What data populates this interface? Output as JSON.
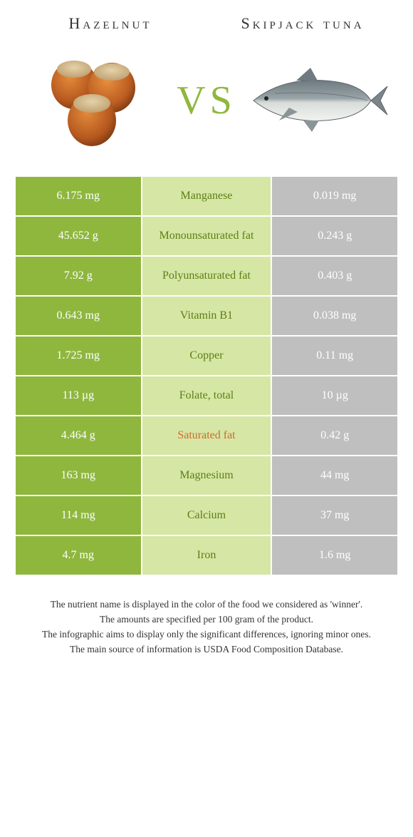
{
  "foods": {
    "left": {
      "title": "Hazelnut"
    },
    "right": {
      "title": "Skipjack tuna"
    },
    "vs": "VS"
  },
  "colors": {
    "left_bg": "#8fb73e",
    "mid_bg": "#d6e6a5",
    "right_bg": "#c0bfbf",
    "winner_left": "#5d7f14",
    "winner_right": "#d06a2c"
  },
  "rows": [
    {
      "left": "6.175 mg",
      "nutrient": "Manganese",
      "right": "0.019 mg",
      "winner": "left"
    },
    {
      "left": "45.652 g",
      "nutrient": "Monounsaturated fat",
      "right": "0.243 g",
      "winner": "left"
    },
    {
      "left": "7.92 g",
      "nutrient": "Polyunsaturated fat",
      "right": "0.403 g",
      "winner": "left"
    },
    {
      "left": "0.643 mg",
      "nutrient": "Vitamin B1",
      "right": "0.038 mg",
      "winner": "left"
    },
    {
      "left": "1.725 mg",
      "nutrient": "Copper",
      "right": "0.11 mg",
      "winner": "left"
    },
    {
      "left": "113 µg",
      "nutrient": "Folate, total",
      "right": "10 µg",
      "winner": "left"
    },
    {
      "left": "4.464 g",
      "nutrient": "Saturated fat",
      "right": "0.42 g",
      "winner": "right"
    },
    {
      "left": "163 mg",
      "nutrient": "Magnesium",
      "right": "44 mg",
      "winner": "left"
    },
    {
      "left": "114 mg",
      "nutrient": "Calcium",
      "right": "37 mg",
      "winner": "left"
    },
    {
      "left": "4.7 mg",
      "nutrient": "Iron",
      "right": "1.6 mg",
      "winner": "left"
    }
  ],
  "footnotes": [
    "The nutrient name is displayed in the color of the food we considered as 'winner'.",
    "The amounts are specified per 100 gram of the product.",
    "The infographic aims to display only the significant differences, ignoring minor ones.",
    "The main source of information is USDA Food Composition Database."
  ]
}
